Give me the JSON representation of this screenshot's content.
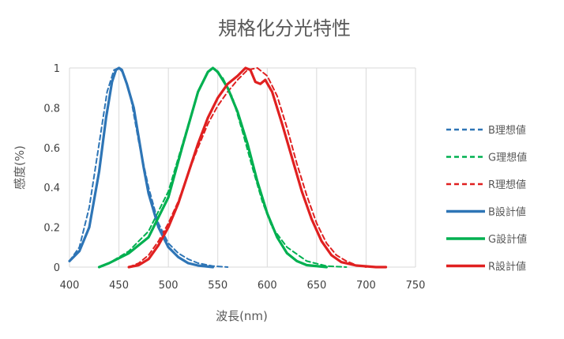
{
  "chart_data": {
    "type": "line",
    "title": "規格化分光特性",
    "xlabel": "波長(nm)",
    "ylabel": "感度(%)",
    "xlim": [
      400,
      750
    ],
    "ylim": [
      0,
      1
    ],
    "xticks": [
      "400",
      "450",
      "500",
      "550",
      "600",
      "650",
      "700",
      "750"
    ],
    "yticks": [
      "0",
      "0.2",
      "0.4",
      "0.6",
      "0.8",
      "1"
    ],
    "grid": "vertical",
    "legend_position": "right",
    "series": [
      {
        "name": "B理想値",
        "color": "#2e75b6",
        "style": "dashed",
        "points": [
          [
            400,
            0.03
          ],
          [
            410,
            0.1
          ],
          [
            420,
            0.3
          ],
          [
            430,
            0.62
          ],
          [
            438,
            0.88
          ],
          [
            445,
            0.99
          ],
          [
            450,
            1.0
          ],
          [
            455,
            0.97
          ],
          [
            462,
            0.85
          ],
          [
            470,
            0.63
          ],
          [
            480,
            0.4
          ],
          [
            490,
            0.22
          ],
          [
            500,
            0.12
          ],
          [
            510,
            0.07
          ],
          [
            520,
            0.04
          ],
          [
            530,
            0.02
          ],
          [
            545,
            0.005
          ],
          [
            560,
            0.0
          ]
        ]
      },
      {
        "name": "G理想値",
        "color": "#00b050",
        "style": "dashed",
        "points": [
          [
            430,
            0.0
          ],
          [
            440,
            0.02
          ],
          [
            460,
            0.08
          ],
          [
            480,
            0.18
          ],
          [
            500,
            0.38
          ],
          [
            515,
            0.63
          ],
          [
            530,
            0.88
          ],
          [
            540,
            0.98
          ],
          [
            545,
            1.0
          ],
          [
            555,
            0.95
          ],
          [
            565,
            0.85
          ],
          [
            575,
            0.68
          ],
          [
            585,
            0.5
          ],
          [
            595,
            0.33
          ],
          [
            605,
            0.2
          ],
          [
            620,
            0.1
          ],
          [
            640,
            0.03
          ],
          [
            660,
            0.005
          ],
          [
            680,
            0.0
          ]
        ]
      },
      {
        "name": "R理想値",
        "color": "#e02020",
        "style": "dashed",
        "points": [
          [
            460,
            0.0
          ],
          [
            470,
            0.02
          ],
          [
            480,
            0.06
          ],
          [
            490,
            0.13
          ],
          [
            500,
            0.22
          ],
          [
            510,
            0.33
          ],
          [
            520,
            0.47
          ],
          [
            530,
            0.6
          ],
          [
            540,
            0.72
          ],
          [
            550,
            0.81
          ],
          [
            560,
            0.88
          ],
          [
            570,
            0.94
          ],
          [
            580,
            0.99
          ],
          [
            590,
            1.0
          ],
          [
            600,
            0.96
          ],
          [
            610,
            0.86
          ],
          [
            620,
            0.7
          ],
          [
            630,
            0.52
          ],
          [
            640,
            0.36
          ],
          [
            650,
            0.22
          ],
          [
            660,
            0.12
          ],
          [
            670,
            0.06
          ],
          [
            680,
            0.03
          ],
          [
            690,
            0.01
          ],
          [
            700,
            0.0
          ]
        ]
      },
      {
        "name": "B設計値",
        "color": "#2e75b6",
        "style": "solid",
        "points": [
          [
            400,
            0.03
          ],
          [
            410,
            0.08
          ],
          [
            420,
            0.2
          ],
          [
            430,
            0.48
          ],
          [
            437,
            0.75
          ],
          [
            443,
            0.93
          ],
          [
            447,
            0.99
          ],
          [
            450,
            1.0
          ],
          [
            453,
            0.99
          ],
          [
            458,
            0.92
          ],
          [
            465,
            0.8
          ],
          [
            470,
            0.65
          ],
          [
            475,
            0.5
          ],
          [
            480,
            0.37
          ],
          [
            490,
            0.2
          ],
          [
            500,
            0.1
          ],
          [
            510,
            0.05
          ],
          [
            520,
            0.02
          ],
          [
            530,
            0.008
          ],
          [
            545,
            0.0
          ]
        ]
      },
      {
        "name": "G設計値",
        "color": "#00b050",
        "style": "solid",
        "points": [
          [
            430,
            0.0
          ],
          [
            440,
            0.02
          ],
          [
            460,
            0.07
          ],
          [
            480,
            0.15
          ],
          [
            500,
            0.35
          ],
          [
            515,
            0.62
          ],
          [
            530,
            0.88
          ],
          [
            540,
            0.98
          ],
          [
            545,
            1.0
          ],
          [
            550,
            0.98
          ],
          [
            560,
            0.9
          ],
          [
            570,
            0.78
          ],
          [
            580,
            0.62
          ],
          [
            590,
            0.43
          ],
          [
            600,
            0.27
          ],
          [
            610,
            0.15
          ],
          [
            620,
            0.07
          ],
          [
            630,
            0.03
          ],
          [
            640,
            0.01
          ],
          [
            660,
            0.0
          ]
        ]
      },
      {
        "name": "R設計値",
        "color": "#e02020",
        "style": "solid",
        "points": [
          [
            460,
            0.0
          ],
          [
            470,
            0.01
          ],
          [
            480,
            0.04
          ],
          [
            490,
            0.11
          ],
          [
            500,
            0.2
          ],
          [
            510,
            0.32
          ],
          [
            520,
            0.47
          ],
          [
            530,
            0.62
          ],
          [
            540,
            0.75
          ],
          [
            550,
            0.85
          ],
          [
            560,
            0.92
          ],
          [
            570,
            0.96
          ],
          [
            578,
            1.0
          ],
          [
            583,
            0.99
          ],
          [
            588,
            0.93
          ],
          [
            593,
            0.92
          ],
          [
            598,
            0.94
          ],
          [
            605,
            0.88
          ],
          [
            615,
            0.72
          ],
          [
            625,
            0.55
          ],
          [
            635,
            0.38
          ],
          [
            645,
            0.24
          ],
          [
            655,
            0.13
          ],
          [
            665,
            0.06
          ],
          [
            675,
            0.025
          ],
          [
            690,
            0.008
          ],
          [
            710,
            0.0
          ],
          [
            720,
            0.0
          ]
        ]
      }
    ]
  }
}
